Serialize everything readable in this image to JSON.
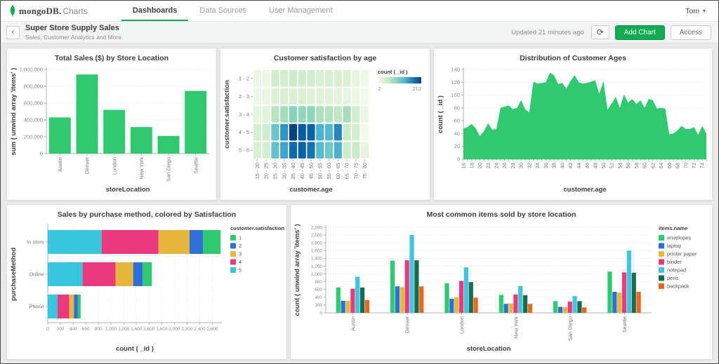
{
  "navbar": {
    "brand": {
      "name_primary": "mongoDB.",
      "name_secondary": "Charts"
    },
    "tabs": [
      {
        "label": "Dashboards",
        "active": true
      },
      {
        "label": "Data Sources",
        "active": false
      },
      {
        "label": "User Management",
        "active": false
      }
    ],
    "user": {
      "name": "Tom"
    }
  },
  "header": {
    "title": "Super Store Supply Sales",
    "subtitle": "Sales, Customer Analytics and More",
    "updated": "Updated 21 minutes ago",
    "add_chart_label": "Add Chart",
    "access_label": "Access"
  },
  "icons": {
    "back": "‹",
    "refresh": "⟳",
    "caret": "▾"
  },
  "colors": {
    "brand_green": "#12aa52",
    "chart_green": "#31c96f",
    "satisfaction": {
      "1": "#31c96f",
      "2": "#2d6fd9",
      "3": "#e5b73c",
      "4": "#ea3a7c",
      "5": "#38c5de"
    }
  },
  "chart_data": [
    {
      "type": "bar",
      "title": "Total Sales ($) by Store Location",
      "xlabel": "storeLocation",
      "ylabel": "sum ( unwind array 'items' )",
      "categories": [
        "Austin",
        "Denver",
        "London",
        "New York",
        "San Diego",
        "Seattle"
      ],
      "values": [
        430000,
        940000,
        520000,
        315000,
        210000,
        745000
      ],
      "ylim": [
        0,
        1000000
      ],
      "ytick_step": 200000,
      "color": "#31c96f"
    },
    {
      "type": "heatmap",
      "title": "Customer satisfaction by age",
      "xlabel": "customer.age",
      "ylabel": "customer.satisfaction",
      "x_categories": [
        "15 - 20",
        "20 - 25",
        "25 - 30",
        "30 - 35",
        "35 - 40",
        "40 - 45",
        "45 - 50",
        "50 - 55",
        "55 - 60",
        "60 - 65",
        "65 - 70",
        "70 - 75",
        "75 - 80"
      ],
      "y_categories": [
        "1 - 2",
        "2 - 3",
        "3 - 4",
        "4 - 5",
        "5 - 6"
      ],
      "values": [
        [
          12,
          10,
          38,
          40,
          45,
          42,
          38,
          30,
          33,
          30,
          28,
          18,
          8
        ],
        [
          10,
          14,
          26,
          30,
          32,
          30,
          26,
          24,
          22,
          20,
          16,
          10,
          5
        ],
        [
          18,
          22,
          62,
          78,
          95,
          88,
          92,
          70,
          66,
          56,
          75,
          40,
          12
        ],
        [
          35,
          42,
          115,
          155,
          213,
          195,
          190,
          135,
          128,
          165,
          48,
          38,
          6
        ],
        [
          30,
          38,
          118,
          145,
          185,
          190,
          178,
          125,
          112,
          135,
          42,
          48,
          16
        ]
      ],
      "legend": {
        "title": "count ( _id )",
        "min": 2,
        "max": 213
      },
      "color_stops": [
        "#f3faee",
        "#dcf1d4",
        "#c3e8c2",
        "#9fdbb9",
        "#76ccc3",
        "#4eb3d3",
        "#2b8cbe",
        "#0868ac",
        "#084081"
      ]
    },
    {
      "type": "area",
      "title": "Distribution of Customer Ages",
      "xlabel": "customer.age",
      "ylabel": "count ( _id )",
      "x": [
        16,
        17,
        18,
        19,
        20,
        21,
        22,
        23,
        24,
        25,
        26,
        27,
        28,
        29,
        30,
        31,
        32,
        33,
        34,
        35,
        36,
        37,
        38,
        39,
        40,
        41,
        42,
        43,
        44,
        45,
        46,
        47,
        48,
        49,
        50,
        51,
        52,
        53,
        54,
        55,
        56,
        57,
        58,
        59,
        60,
        61,
        62,
        63,
        64,
        65,
        66,
        67,
        68,
        69,
        70,
        71,
        72,
        73,
        74,
        75
      ],
      "values": [
        48,
        50,
        55,
        48,
        36,
        44,
        56,
        46,
        47,
        80,
        82,
        84,
        78,
        80,
        92,
        78,
        73,
        121,
        118,
        119,
        120,
        135,
        131,
        117,
        119,
        110,
        122,
        131,
        120,
        118,
        119,
        121,
        123,
        102,
        122,
        77,
        87,
        97,
        80,
        101,
        88,
        94,
        86,
        92,
        80,
        94,
        92,
        79,
        80,
        79,
        39,
        40,
        45,
        52,
        47,
        47,
        50,
        38,
        52,
        40
      ],
      "ylim": [
        0,
        140
      ],
      "ytick_step": 20,
      "xtick_label_step": 2,
      "color": "#31c96f"
    },
    {
      "type": "hstack",
      "title": "Sales by purchase method, colored by Satisfaction",
      "xlabel": "count ( _id )",
      "ylabel": "purchaseMethod",
      "categories": [
        "In store",
        "Online",
        "Phone"
      ],
      "legend_title": "customer.satisfaction",
      "legend_order": [
        "1",
        "2",
        "3",
        "4",
        "5"
      ],
      "series": [
        {
          "name": "5",
          "color": "#38c5de",
          "values": [
            850,
            550,
            155
          ]
        },
        {
          "name": "4",
          "color": "#ea3a7c",
          "values": [
            900,
            520,
            185
          ]
        },
        {
          "name": "3",
          "color": "#e5b73c",
          "values": [
            490,
            280,
            75
          ]
        },
        {
          "name": "2",
          "color": "#2d6fd9",
          "values": [
            210,
            150,
            60
          ]
        },
        {
          "name": "1",
          "color": "#31c96f",
          "values": [
            280,
            145,
            45
          ]
        }
      ],
      "xlim": [
        0,
        2750
      ],
      "xtick_step": 200,
      "xtick_max": 2600
    },
    {
      "type": "groupbar",
      "title": "Most common items sold by store location",
      "xlabel": "storeLocation",
      "ylabel": "count ( unwind array 'items' )",
      "categories": [
        "Austin",
        "Denver",
        "London",
        "New York",
        "San Diego",
        "Seattle"
      ],
      "legend_title": "items.name",
      "series": [
        {
          "name": "envelopes",
          "color": "#31c96f",
          "values": [
            650,
            1340,
            760,
            460,
            300,
            1060
          ]
        },
        {
          "name": "laptop",
          "color": "#2d6fd9",
          "values": [
            310,
            680,
            360,
            230,
            150,
            540
          ]
        },
        {
          "name": "printer paper",
          "color": "#e5b73c",
          "values": [
            310,
            660,
            400,
            240,
            150,
            520
          ]
        },
        {
          "name": "binder",
          "color": "#ea3a7c",
          "values": [
            620,
            1350,
            820,
            470,
            290,
            1040
          ]
        },
        {
          "name": "notepad",
          "color": "#40c4e0",
          "values": [
            930,
            2000,
            1170,
            690,
            430,
            1600
          ]
        },
        {
          "name": "pens",
          "color": "#1a6b4c",
          "values": [
            650,
            1350,
            790,
            450,
            300,
            1030
          ]
        },
        {
          "name": "backpack",
          "color": "#e8671f",
          "values": [
            330,
            680,
            390,
            230,
            140,
            540
          ]
        }
      ],
      "ylim": [
        0,
        2200
      ],
      "ytick_step": 200
    }
  ]
}
